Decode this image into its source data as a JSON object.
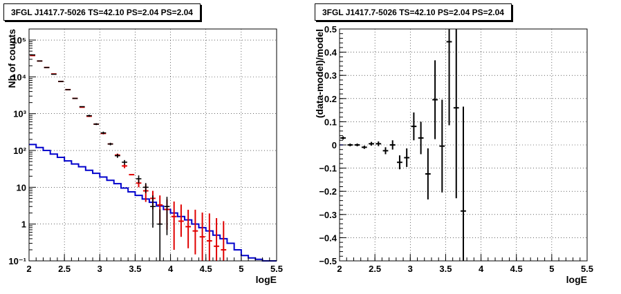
{
  "chart_data": [
    {
      "type": "step-histogram-with-errorbars",
      "title": "3FGL J1417.7-5026 TS=42.10 PS=2.04 PS=2.04",
      "xlabel": "logE",
      "ylabel": "Nb of counts",
      "ylog": true,
      "xlim": [
        2,
        5.5
      ],
      "ylim": [
        0.1,
        200000
      ],
      "grid": true,
      "x_ticks": [
        "2",
        "2.5",
        "3",
        "3.5",
        "4",
        "4.5",
        "5",
        "5.5"
      ],
      "y_ticks": [
        {
          "v": 0.1,
          "label": "10⁻¹"
        },
        {
          "v": 1,
          "label": "1"
        },
        {
          "v": 10,
          "label": "10"
        },
        {
          "v": 100,
          "label": "10²"
        },
        {
          "v": 1000,
          "label": "10³"
        },
        {
          "v": 10000,
          "label": "10⁴"
        },
        {
          "v": 100000,
          "label": "10⁵"
        }
      ],
      "bin_width": 0.1,
      "colors": {
        "model": "#e00000",
        "data": "#000000",
        "component": "#0000cc"
      },
      "series": [
        {
          "role": "model",
          "x": [
            2.05,
            2.15,
            2.25,
            2.35,
            2.45,
            2.55,
            2.65,
            2.75,
            2.85,
            2.95,
            3.05,
            3.15,
            3.25,
            3.35,
            3.45,
            3.55,
            3.65,
            3.75,
            3.85,
            3.95,
            4.05,
            4.15,
            4.25,
            4.35,
            4.45,
            4.55,
            4.65,
            4.75
          ],
          "y": [
            38000,
            27000,
            18000,
            12000,
            7500,
            4500,
            2600,
            1500,
            850,
            520,
            290,
            150,
            75,
            38,
            22,
            13,
            8,
            5,
            3.3,
            2.5,
            1.6,
            1.2,
            0.85,
            0.65,
            0.45,
            0.35,
            0.25,
            0.2
          ],
          "yerr_low": [
            0,
            0,
            0,
            0,
            0,
            0,
            0,
            0,
            0,
            0,
            0,
            0,
            7,
            5,
            0,
            3,
            4,
            2.5,
            2.3,
            1.8,
            1.4,
            0.75,
            0.63,
            0.5,
            0.4,
            0.31,
            0.23,
            0.19
          ],
          "yerr_high": [
            0,
            0,
            0,
            0,
            0,
            0,
            0,
            0,
            0,
            0,
            0,
            0,
            7,
            5,
            0,
            3,
            4,
            3,
            2.7,
            2.2,
            2.5,
            2.2,
            1.6,
            1.8,
            1.6,
            1.6,
            1.2,
            1.0
          ]
        },
        {
          "role": "data",
          "x": [
            2.05,
            2.15,
            2.25,
            2.35,
            2.45,
            2.55,
            2.65,
            2.75,
            2.85,
            2.95,
            3.05,
            3.15,
            3.25,
            3.35,
            3.55,
            3.65,
            3.75,
            3.85,
            3.95
          ],
          "y": [
            39500,
            27000,
            18000,
            11800,
            7500,
            4500,
            2600,
            1550,
            880,
            520,
            300,
            150,
            72,
            48,
            17,
            10,
            3,
            1,
            3
          ],
          "yerr_low": [
            0,
            0,
            0,
            0,
            0,
            0,
            0,
            0,
            55,
            30,
            25,
            12,
            9,
            7,
            4,
            3,
            2.2,
            0.9,
            2.5
          ],
          "yerr_high": [
            0,
            0,
            0,
            0,
            0,
            0,
            0,
            0,
            55,
            30,
            25,
            12,
            9,
            7,
            4,
            3,
            3,
            1.5,
            2.5
          ]
        },
        {
          "role": "component",
          "x": [
            2.05,
            2.15,
            2.25,
            2.35,
            2.45,
            2.55,
            2.65,
            2.75,
            2.85,
            2.95,
            3.05,
            3.15,
            3.25,
            3.35,
            3.45,
            3.55,
            3.65,
            3.75,
            3.85,
            3.95,
            4.05,
            4.15,
            4.25,
            4.35,
            4.45,
            4.55,
            4.65,
            4.75,
            4.85,
            4.95,
            5.05,
            5.15,
            5.25,
            5.35,
            5.45
          ],
          "y": [
            145,
            120,
            100,
            80,
            65,
            52,
            43,
            36,
            29,
            24,
            19,
            15.5,
            12.5,
            9.5,
            7.5,
            6,
            4.8,
            3.9,
            3.1,
            2.5,
            2,
            1.6,
            1.3,
            1,
            0.8,
            0.65,
            0.5,
            0.4,
            0.3,
            0.2,
            0.14,
            0.12,
            0.11,
            0.1,
            0.1
          ]
        }
      ]
    },
    {
      "type": "residual-errorbars",
      "title": "3FGL J1417.7-5026 TS=42.10 PS=2.04 PS=2.04",
      "xlabel": "logE",
      "ylabel": "(data-model)/model",
      "xlim": [
        2,
        5.5
      ],
      "ylim": [
        -0.5,
        0.5
      ],
      "grid": true,
      "x_ticks": [
        "2",
        "2.5",
        "3",
        "3.5",
        "4",
        "4.5",
        "5",
        "5.5"
      ],
      "y_ticks": [
        "−0.5",
        "−0.4",
        "−0.3",
        "−0.2",
        "−0.1",
        "0",
        "0.1",
        "0.2",
        "0.3",
        "0.4",
        "0.5"
      ],
      "bin_width": 0.1,
      "colors": {
        "data": "#000000",
        "reference": "#0000cc"
      },
      "series": [
        {
          "role": "residual",
          "x": [
            2.05,
            2.15,
            2.25,
            2.35,
            2.45,
            2.55,
            2.65,
            2.75,
            2.85,
            2.95,
            3.05,
            3.15,
            3.25,
            3.35,
            3.45,
            3.55,
            3.65,
            3.75
          ],
          "y": [
            0.03,
            0.0,
            0.0,
            -0.01,
            0.005,
            0.005,
            -0.025,
            0.0,
            -0.075,
            -0.055,
            0.08,
            0.03,
            -0.125,
            0.195,
            -0.005,
            0.445,
            0.16,
            -0.285
          ],
          "yerr": [
            0.007,
            0.006,
            0.006,
            0.007,
            0.008,
            0.01,
            0.015,
            0.02,
            0.03,
            0.04,
            0.06,
            0.07,
            0.11,
            0.17,
            0.2,
            0.36,
            0.39,
            0.45
          ]
        }
      ]
    }
  ]
}
